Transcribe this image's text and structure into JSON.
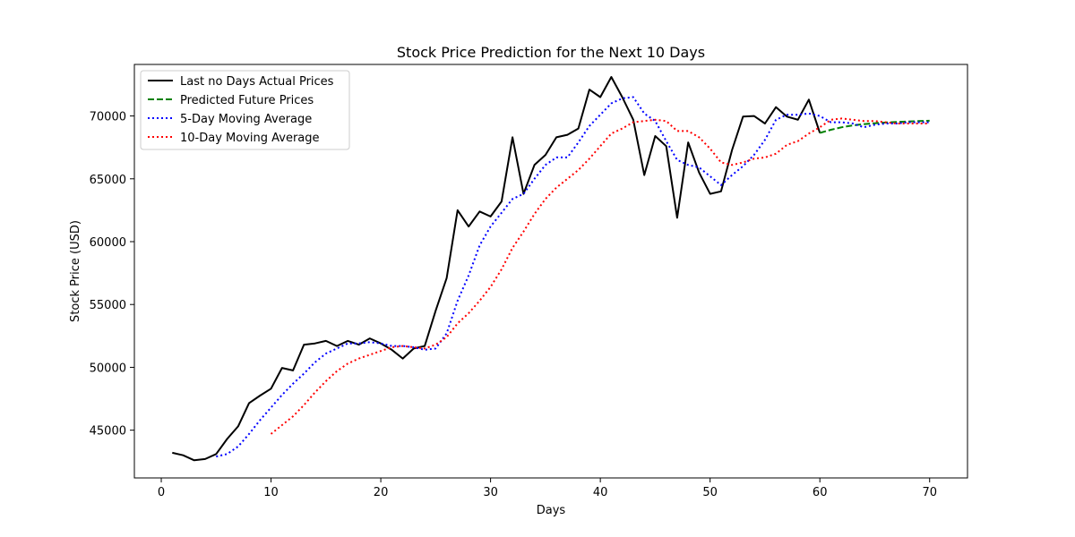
{
  "chart_data": {
    "type": "line",
    "title": "Stock Price Prediction for the Next 10 Days",
    "xlabel": "Days",
    "ylabel": "Stock Price (USD)",
    "xlim": [
      -2.45,
      73.45
    ],
    "ylim": [
      41200,
      74100
    ],
    "xticks": [
      0,
      10,
      20,
      30,
      40,
      50,
      60,
      70
    ],
    "yticks": [
      45000,
      50000,
      55000,
      60000,
      65000,
      70000
    ],
    "grid": false,
    "legend_position": "upper left",
    "series": [
      {
        "name": "Last no Days Actual Prices",
        "color": "#000000",
        "style": "solid",
        "x": [
          1,
          2,
          3,
          4,
          5,
          6,
          7,
          8,
          9,
          10,
          11,
          12,
          13,
          14,
          15,
          16,
          17,
          18,
          19,
          20,
          21,
          22,
          23,
          24,
          25,
          26,
          27,
          28,
          29,
          30,
          31,
          32,
          33,
          34,
          35,
          36,
          37,
          38,
          39,
          40,
          41,
          42,
          43,
          44,
          45,
          46,
          47,
          48,
          49,
          50,
          51,
          52,
          53,
          54,
          55,
          56,
          57,
          58,
          59,
          60
        ],
        "values": [
          43200,
          43000,
          42600,
          42700,
          43100,
          44300,
          45300,
          47150,
          47750,
          48300,
          49950,
          49750,
          51800,
          51900,
          52100,
          51700,
          52100,
          51800,
          52300,
          51900,
          51400,
          50700,
          51500,
          51700,
          54500,
          57100,
          62500,
          61200,
          62400,
          62000,
          63200,
          68300,
          63800,
          66100,
          66900,
          68300,
          68500,
          69000,
          72100,
          71500,
          73100,
          71500,
          69700,
          65300,
          68400,
          67600,
          61900,
          67900,
          65500,
          63800,
          64000,
          67300,
          69950,
          70000,
          69400,
          70700,
          69950,
          69700,
          71300,
          68650
        ]
      },
      {
        "name": "Predicted Future Prices",
        "color": "#008000",
        "style": "dashed",
        "x": [
          60,
          61,
          62,
          63,
          64,
          65,
          66,
          67,
          68,
          69,
          70
        ],
        "values": [
          68650,
          68900,
          69100,
          69250,
          69350,
          69420,
          69480,
          69520,
          69560,
          69590,
          69620
        ]
      },
      {
        "name": "5-Day Moving Average",
        "color": "#0000ff",
        "style": "dotted",
        "x": [
          5,
          6,
          7,
          8,
          9,
          10,
          11,
          12,
          13,
          14,
          15,
          16,
          17,
          18,
          19,
          20,
          21,
          22,
          23,
          24,
          25,
          26,
          27,
          28,
          29,
          30,
          31,
          32,
          33,
          34,
          35,
          36,
          37,
          38,
          39,
          40,
          41,
          42,
          43,
          44,
          45,
          46,
          47,
          48,
          49,
          50,
          51,
          52,
          53,
          54,
          55,
          56,
          57,
          58,
          59,
          60,
          61,
          62,
          63,
          64,
          65,
          66,
          67,
          68,
          69,
          70
        ],
        "values": [
          42900,
          43100,
          43700,
          44700,
          45800,
          46800,
          47800,
          48700,
          49500,
          50400,
          51100,
          51500,
          51900,
          51900,
          52000,
          51900,
          51700,
          51700,
          51600,
          51400,
          51500,
          52700,
          55300,
          57300,
          59700,
          61200,
          62300,
          63400,
          63800,
          65000,
          66100,
          66700,
          66700,
          67900,
          69200,
          70100,
          71000,
          71400,
          71500,
          70200,
          69600,
          68000,
          66500,
          66100,
          65900,
          65200,
          64500,
          65300,
          66000,
          66900,
          68100,
          69700,
          70100,
          70100,
          70200,
          70000,
          69500,
          69500,
          69400,
          69100,
          69300,
          69400,
          69400,
          69500,
          69500,
          69500
        ]
      },
      {
        "name": "10-Day Moving Average",
        "color": "#ff0000",
        "style": "dotted",
        "x": [
          10,
          11,
          12,
          13,
          14,
          15,
          16,
          17,
          18,
          19,
          20,
          21,
          22,
          23,
          24,
          25,
          26,
          27,
          28,
          29,
          30,
          31,
          32,
          33,
          34,
          35,
          36,
          37,
          38,
          39,
          40,
          41,
          42,
          43,
          44,
          45,
          46,
          47,
          48,
          49,
          50,
          51,
          52,
          53,
          54,
          55,
          56,
          57,
          58,
          59,
          60,
          61,
          62,
          63,
          64,
          65,
          66,
          67,
          68,
          69,
          70
        ],
        "values": [
          44700,
          45400,
          46100,
          47000,
          48000,
          48900,
          49700,
          50300,
          50700,
          51000,
          51300,
          51600,
          51700,
          51600,
          51500,
          51800,
          52400,
          53500,
          54300,
          55300,
          56400,
          57800,
          59500,
          60800,
          62200,
          63400,
          64300,
          65000,
          65700,
          66600,
          67600,
          68600,
          69000,
          69500,
          69600,
          69700,
          69600,
          68800,
          68800,
          68300,
          67400,
          66300,
          66100,
          66300,
          66600,
          66700,
          67000,
          67700,
          68000,
          68600,
          69100,
          69700,
          69800,
          69700,
          69600,
          69600,
          69500,
          69400,
          69400,
          69400,
          69400
        ]
      }
    ]
  }
}
